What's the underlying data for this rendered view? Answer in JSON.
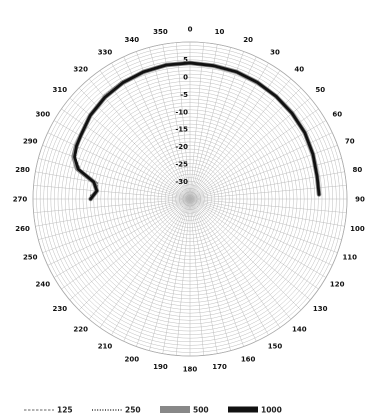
{
  "chart_data": {
    "type": "polar-line",
    "angle_labels": [
      "0",
      "10",
      "20",
      "30",
      "40",
      "50",
      "60",
      "70",
      "80",
      "90",
      "100",
      "110",
      "120",
      "130",
      "140",
      "150",
      "160",
      "170",
      "180",
      "190",
      "200",
      "210",
      "220",
      "230",
      "240",
      "250",
      "260",
      "270",
      "280",
      "290",
      "300",
      "310",
      "320",
      "330",
      "340",
      "350"
    ],
    "radial_tick_labels": [
      "5",
      "0",
      "-5",
      "-10",
      "-15",
      "-20",
      "-25",
      "-30"
    ],
    "radial_range": [
      -35,
      10
    ],
    "radial_ticks": [
      5,
      0,
      -5,
      -10,
      -15,
      -20,
      -25,
      -30
    ],
    "grid": true,
    "legend_position": "bottom",
    "series": [
      {
        "name": "125",
        "style": "dash",
        "color": "#666666",
        "angles": [
          272,
          275,
          280,
          285,
          290,
          300,
          310,
          320,
          330,
          340,
          350
        ],
        "values": [
          -6.5,
          -8.5,
          -8.0,
          -2.5,
          0.0,
          1.0,
          2.5,
          3.5,
          4.0,
          4.0,
          4.2
        ]
      },
      {
        "name": "250",
        "style": "dot",
        "color": "#333333",
        "angles": [
          272,
          275,
          280,
          285,
          290,
          300,
          310,
          320,
          330,
          340,
          350
        ],
        "values": [
          -6.5,
          -8.2,
          -7.5,
          -2.0,
          0.2,
          1.2,
          2.5,
          3.5,
          4.0,
          4.0,
          4.2
        ]
      },
      {
        "name": "500",
        "style": "band",
        "color": "#888888",
        "angles": [
          270,
          275,
          280,
          285,
          290,
          295,
          300,
          310,
          320,
          330,
          340,
          350,
          0,
          10,
          20,
          30,
          40,
          50,
          60,
          70,
          80,
          88
        ],
        "values": [
          -6.5,
          -8.2,
          -7.0,
          -1.5,
          0.5,
          1.0,
          1.2,
          2.3,
          3.0,
          3.5,
          3.8,
          4.0,
          4.0,
          3.8,
          3.8,
          3.6,
          3.4,
          3.2,
          3.0,
          2.5,
          2.0,
          2.0
        ]
      },
      {
        "name": "1000",
        "style": "thick",
        "color": "#111111",
        "angles": [
          270,
          275,
          280,
          285,
          290,
          295,
          300,
          310,
          320,
          330,
          340,
          350,
          0,
          10,
          20,
          30,
          40,
          50,
          60,
          70,
          80,
          88
        ],
        "values": [
          -6.5,
          -8.2,
          -7.0,
          -1.8,
          0.2,
          0.9,
          1.2,
          2.3,
          3.0,
          3.5,
          3.8,
          4.0,
          4.0,
          3.8,
          3.8,
          3.6,
          3.4,
          3.2,
          3.0,
          2.5,
          2.0,
          2.0
        ]
      }
    ]
  }
}
